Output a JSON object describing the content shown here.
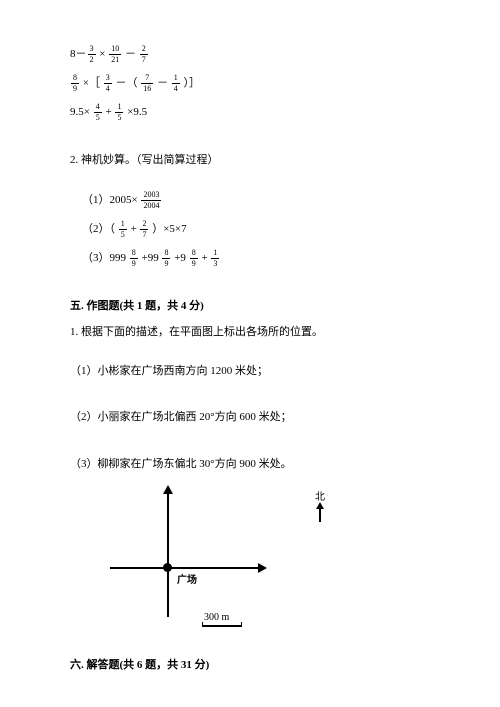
{
  "eq1": {
    "a": "8－",
    "f1n": "3",
    "f1d": "2",
    "b": " × ",
    "f2n": "10",
    "f2d": "21",
    "c": " － ",
    "f3n": "2",
    "f3d": "7"
  },
  "eq2": {
    "f1n": "8",
    "f1d": "9",
    "a": " ×［ ",
    "f2n": "3",
    "f2d": "4",
    "b": " －（ ",
    "f3n": "7",
    "f3d": "16",
    "c": " － ",
    "f4n": "1",
    "f4d": "4",
    "d": " ）］"
  },
  "eq3": {
    "a": "9.5× ",
    "f1n": "4",
    "f1d": "5",
    "b": " + ",
    "f2n": "1",
    "f2d": "5",
    "c": " ×9.5"
  },
  "p2title": "2. 神机妙算。（写出简算过程）",
  "p2_1": {
    "a": "（1）2005× ",
    "fn": "2003",
    "fd": "2004"
  },
  "p2_2": {
    "a": "（2）（ ",
    "f1n": "1",
    "f1d": "5",
    "b": " + ",
    "f2n": "2",
    "f2d": "7",
    "c": " ）×5×7"
  },
  "p2_3": {
    "a": "（3）999 ",
    "f1n": "8",
    "f1d": "9",
    "b": " +99 ",
    "f2n": "8",
    "f2d": "9",
    "c": " +9 ",
    "f3n": "8",
    "f3d": "9",
    "d": " + ",
    "f4n": "1",
    "f4d": "3"
  },
  "s5title": "五. 作图题(共 1 题，共 4 分)",
  "s5_1": "1. 根据下面的描述，在平面图上标出各场所的位置。",
  "s5_1_1": "（1）小彬家在广场西南方向 1200 米处；",
  "s5_1_2": "（2）小丽家在广场北偏西 20°方向 600 米处；",
  "s5_1_3": "（3）柳柳家在广场东偏北 30°方向 900 米处。",
  "fig": {
    "origin": "广场",
    "scale": "300 m",
    "north": "北"
  },
  "s6title": "六. 解答题(共 6 题，共 31 分)"
}
